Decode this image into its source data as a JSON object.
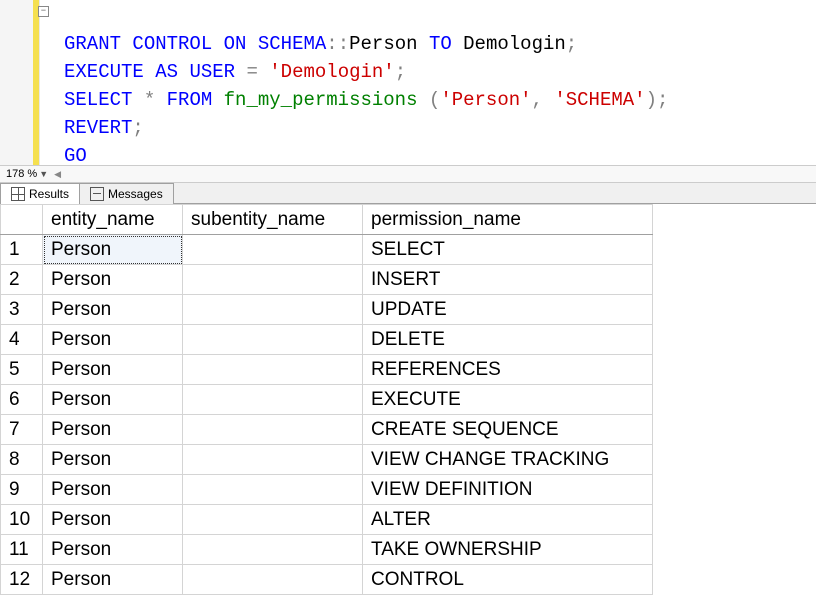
{
  "code": {
    "line1": {
      "grant": "GRANT",
      "control": "CONTROL",
      "on": "ON",
      "schema": "SCHEMA",
      "cc": "::",
      "person": "Person",
      "to": "TO",
      "user": "Demologin",
      "semi": ";"
    },
    "line2": {
      "execute": "EXECUTE",
      "as": "AS",
      "user": "USER",
      "eq": " = ",
      "str": "'Demologin'",
      "semi": ";"
    },
    "line3": {
      "select": "SELECT",
      "star": " * ",
      "from": "FROM",
      "fn": "fn_my_permissions",
      "open": " (",
      "arg1": "'Person'",
      "comma": ", ",
      "arg2": "'SCHEMA'",
      "close": ")",
      "semi": ";"
    },
    "line4": {
      "revert": "REVERT",
      "semi": ";"
    },
    "line5": {
      "go": "GO"
    }
  },
  "zoom": "178 %",
  "tabs": {
    "results": "Results",
    "messages": "Messages"
  },
  "columns": {
    "entity": "entity_name",
    "sub": "subentity_name",
    "perm": "permission_name"
  },
  "rows": [
    {
      "n": "1",
      "entity": "Person",
      "sub": "",
      "perm": "SELECT"
    },
    {
      "n": "2",
      "entity": "Person",
      "sub": "",
      "perm": "INSERT"
    },
    {
      "n": "3",
      "entity": "Person",
      "sub": "",
      "perm": "UPDATE"
    },
    {
      "n": "4",
      "entity": "Person",
      "sub": "",
      "perm": "DELETE"
    },
    {
      "n": "5",
      "entity": "Person",
      "sub": "",
      "perm": "REFERENCES"
    },
    {
      "n": "6",
      "entity": "Person",
      "sub": "",
      "perm": "EXECUTE"
    },
    {
      "n": "7",
      "entity": "Person",
      "sub": "",
      "perm": "CREATE SEQUENCE"
    },
    {
      "n": "8",
      "entity": "Person",
      "sub": "",
      "perm": "VIEW CHANGE TRACKING"
    },
    {
      "n": "9",
      "entity": "Person",
      "sub": "",
      "perm": "VIEW DEFINITION"
    },
    {
      "n": "10",
      "entity": "Person",
      "sub": "",
      "perm": "ALTER"
    },
    {
      "n": "11",
      "entity": "Person",
      "sub": "",
      "perm": "TAKE OWNERSHIP"
    },
    {
      "n": "12",
      "entity": "Person",
      "sub": "",
      "perm": "CONTROL"
    }
  ]
}
